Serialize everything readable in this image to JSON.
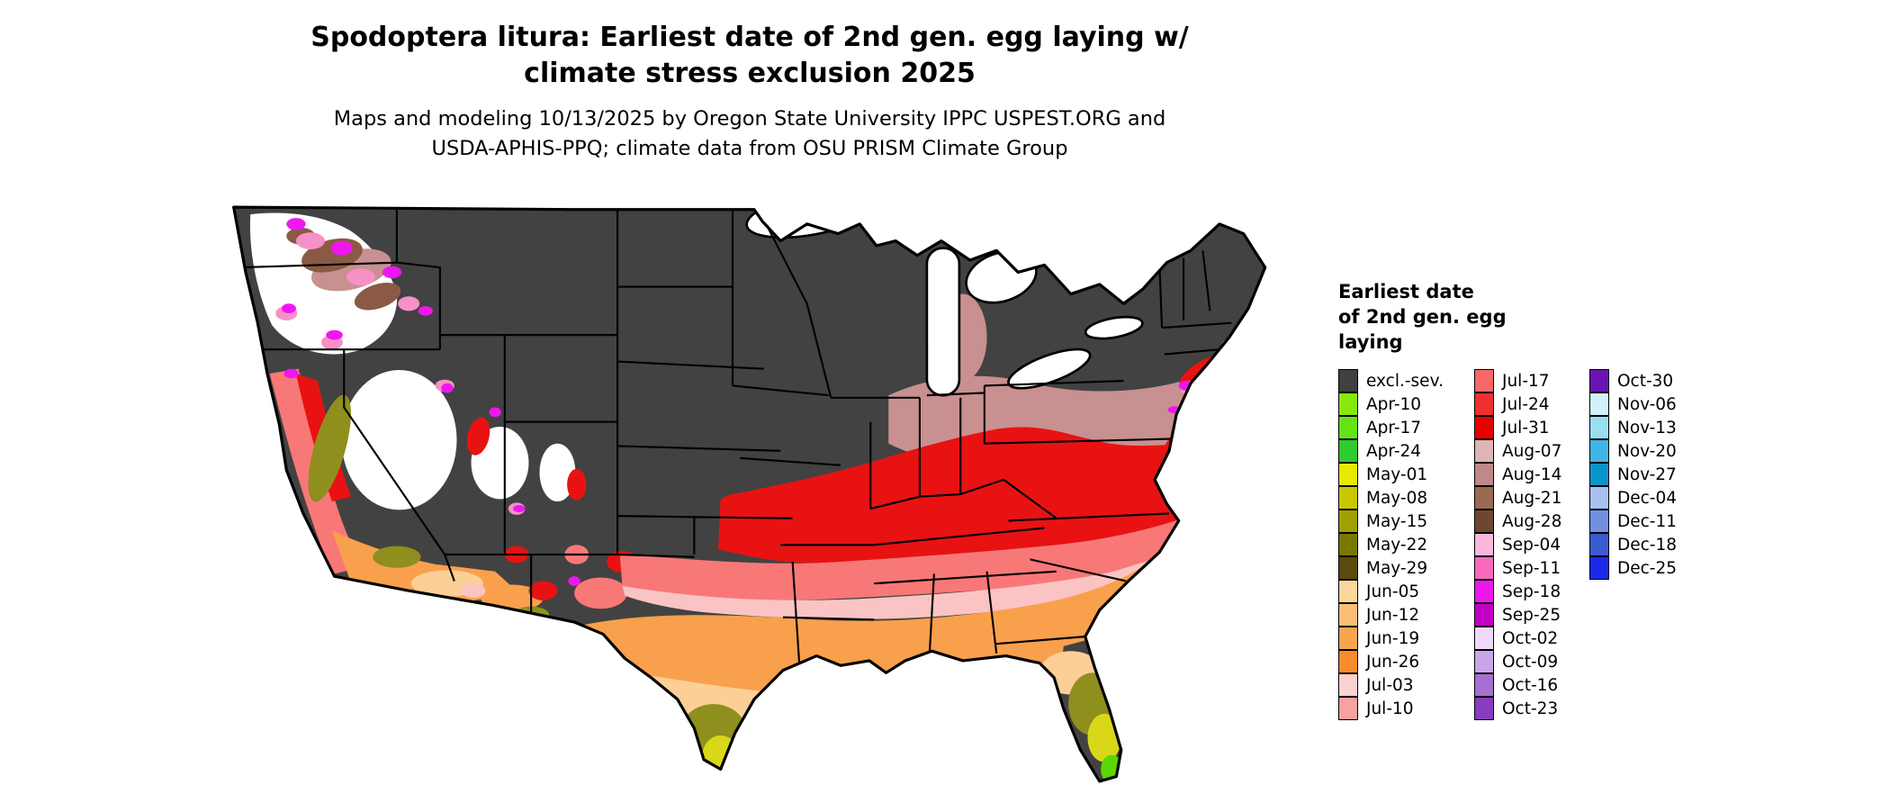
{
  "title": {
    "line1": "Spodoptera litura: Earliest date of 2nd gen. egg laying w/",
    "line2": "climate stress exclusion 2025"
  },
  "subtitle": {
    "line1": "Maps and modeling 10/13/2025 by Oregon State University IPPC USPEST.ORG and",
    "line2": "USDA-APHIS-PPQ; climate data from OSU PRISM Climate Group"
  },
  "legend": {
    "title_line1": "Earliest date",
    "title_line2": "of 2nd gen. egg",
    "title_line3": "laying",
    "columns": [
      [
        {
          "label": "excl.-sev.",
          "color": "#404040"
        },
        {
          "label": "Apr-10",
          "color": "#86E80C"
        },
        {
          "label": "Apr-17",
          "color": "#64E414"
        },
        {
          "label": "Apr-24",
          "color": "#2ECC2E"
        },
        {
          "label": "May-01",
          "color": "#E8E800"
        },
        {
          "label": "May-08",
          "color": "#C8C800"
        },
        {
          "label": "May-15",
          "color": "#A0A000"
        },
        {
          "label": "May-22",
          "color": "#787800"
        },
        {
          "label": "May-29",
          "color": "#5A4A10"
        },
        {
          "label": "Jun-05",
          "color": "#FCD79B"
        },
        {
          "label": "Jun-12",
          "color": "#FBBE74"
        },
        {
          "label": "Jun-19",
          "color": "#F9A550"
        },
        {
          "label": "Jun-26",
          "color": "#F78C2A"
        },
        {
          "label": "Jul-03",
          "color": "#FBD2D2"
        },
        {
          "label": "Jul-10",
          "color": "#F9A0A0"
        }
      ],
      [
        {
          "label": "Jul-17",
          "color": "#F86868"
        },
        {
          "label": "Jul-24",
          "color": "#F03030"
        },
        {
          "label": "Jul-31",
          "color": "#E80000"
        },
        {
          "label": "Aug-07",
          "color": "#E0B4B4"
        },
        {
          "label": "Aug-14",
          "color": "#C08888"
        },
        {
          "label": "Aug-21",
          "color": "#9A6A52"
        },
        {
          "label": "Aug-28",
          "color": "#6E4632"
        },
        {
          "label": "Sep-04",
          "color": "#FBB6DC"
        },
        {
          "label": "Sep-11",
          "color": "#F96ABF"
        },
        {
          "label": "Sep-18",
          "color": "#EE18EE"
        },
        {
          "label": "Sep-25",
          "color": "#C400C4"
        },
        {
          "label": "Oct-02",
          "color": "#EED9F8"
        },
        {
          "label": "Oct-09",
          "color": "#C9A6E8"
        },
        {
          "label": "Oct-16",
          "color": "#A670D0"
        },
        {
          "label": "Oct-23",
          "color": "#8A3CBE"
        }
      ],
      [
        {
          "label": "Oct-30",
          "color": "#6A14B4"
        },
        {
          "label": "Nov-06",
          "color": "#D2F2FA"
        },
        {
          "label": "Nov-13",
          "color": "#9ADEF2"
        },
        {
          "label": "Nov-20",
          "color": "#40B4E4"
        },
        {
          "label": "Nov-27",
          "color": "#0A94CC"
        },
        {
          "label": "Dec-04",
          "color": "#A8C0EE"
        },
        {
          "label": "Dec-11",
          "color": "#7090E0"
        },
        {
          "label": "Dec-18",
          "color": "#3A5AD0"
        },
        {
          "label": "Dec-25",
          "color": "#1A2AE8"
        }
      ]
    ]
  }
}
